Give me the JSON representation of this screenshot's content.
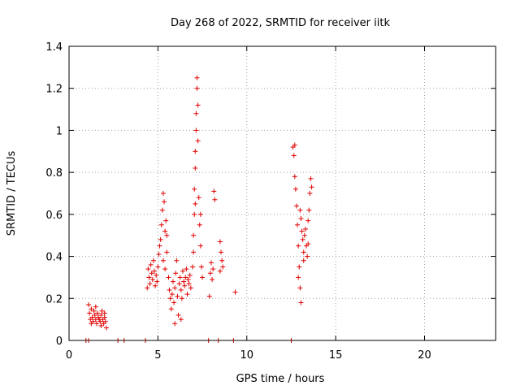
{
  "chart_data": {
    "type": "scatter",
    "title": "Day 268 of 2022, SRMTID for receiver iitk",
    "xlabel": "GPS time / hours",
    "ylabel": "SRMTID / TECUs",
    "xlim": [
      0,
      24
    ],
    "ylim": [
      0,
      1.4
    ],
    "xticks": [
      0,
      5,
      10,
      15,
      20
    ],
    "yticks": [
      0,
      0.2,
      0.4,
      0.6,
      0.8,
      1,
      1.2,
      1.4
    ],
    "xtick_labels": [
      "0",
      "5",
      "10",
      "15",
      "20"
    ],
    "ytick_labels": [
      "0",
      "0.2",
      "0.4",
      "0.6",
      "0.8",
      "1",
      "1.2",
      "1.4"
    ],
    "grid": true,
    "marker": "plus",
    "colors": {
      "points": "#e00000"
    },
    "series": [
      {
        "points": [
          [
            0.95,
            0.0
          ],
          [
            1.1,
            0.0
          ],
          [
            1.1,
            0.17
          ],
          [
            1.15,
            0.13
          ],
          [
            1.2,
            0.1
          ],
          [
            1.25,
            0.08
          ],
          [
            1.25,
            0.15
          ],
          [
            1.3,
            0.11
          ],
          [
            1.35,
            0.09
          ],
          [
            1.4,
            0.14
          ],
          [
            1.45,
            0.12
          ],
          [
            1.5,
            0.1
          ],
          [
            1.55,
            0.08
          ],
          [
            1.6,
            0.13
          ],
          [
            1.65,
            0.11
          ],
          [
            1.7,
            0.1
          ],
          [
            1.75,
            0.09
          ],
          [
            1.8,
            0.12
          ],
          [
            1.85,
            0.14
          ],
          [
            1.9,
            0.1
          ],
          [
            1.95,
            0.08
          ],
          [
            2.0,
            0.11
          ],
          [
            2.05,
            0.09
          ],
          [
            2.1,
            0.06
          ],
          [
            1.5,
            0.16
          ],
          [
            1.8,
            0.07
          ],
          [
            2.0,
            0.13
          ],
          [
            2.75,
            0.0
          ],
          [
            3.1,
            0.0
          ],
          [
            4.3,
            0.0
          ],
          [
            4.4,
            0.25
          ],
          [
            4.45,
            0.34
          ],
          [
            4.5,
            0.3
          ],
          [
            4.55,
            0.27
          ],
          [
            4.6,
            0.36
          ],
          [
            4.65,
            0.32
          ],
          [
            4.7,
            0.29
          ],
          [
            4.75,
            0.38
          ],
          [
            4.8,
            0.33
          ],
          [
            4.85,
            0.26
          ],
          [
            4.9,
            0.31
          ],
          [
            4.95,
            0.28
          ],
          [
            5.0,
            0.35
          ],
          [
            5.05,
            0.41
          ],
          [
            5.1,
            0.45
          ],
          [
            5.15,
            0.48
          ],
          [
            5.2,
            0.55
          ],
          [
            5.25,
            0.62
          ],
          [
            5.3,
            0.7
          ],
          [
            5.35,
            0.66
          ],
          [
            5.4,
            0.52
          ],
          [
            5.45,
            0.57
          ],
          [
            5.5,
            0.5
          ],
          [
            5.3,
            0.38
          ],
          [
            5.4,
            0.34
          ],
          [
            5.5,
            0.42
          ],
          [
            5.6,
            0.3
          ],
          [
            5.65,
            0.24
          ],
          [
            5.7,
            0.2
          ],
          [
            5.75,
            0.15
          ],
          [
            5.8,
            0.22
          ],
          [
            5.85,
            0.28
          ],
          [
            5.9,
            0.18
          ],
          [
            5.95,
            0.25
          ],
          [
            6.0,
            0.32
          ],
          [
            6.05,
            0.38
          ],
          [
            6.1,
            0.21
          ],
          [
            6.15,
            0.12
          ],
          [
            6.2,
            0.27
          ],
          [
            6.25,
            0.3
          ],
          [
            6.3,
            0.24
          ],
          [
            6.35,
            0.2
          ],
          [
            6.4,
            0.33
          ],
          [
            6.45,
            0.28
          ],
          [
            6.5,
            0.26
          ],
          [
            6.55,
            0.3
          ],
          [
            6.6,
            0.34
          ],
          [
            6.65,
            0.22
          ],
          [
            6.7,
            0.29
          ],
          [
            6.75,
            0.27
          ],
          [
            6.8,
            0.31
          ],
          [
            6.85,
            0.25
          ],
          [
            5.95,
            0.08
          ],
          [
            6.3,
            0.1
          ],
          [
            6.95,
            0.35
          ],
          [
            7.0,
            0.42
          ],
          [
            7.0,
            0.5
          ],
          [
            7.05,
            0.6
          ],
          [
            7.05,
            0.72
          ],
          [
            7.1,
            0.82
          ],
          [
            7.1,
            0.9
          ],
          [
            7.15,
            1.0
          ],
          [
            7.15,
            1.08
          ],
          [
            7.2,
            1.2
          ],
          [
            7.2,
            1.25
          ],
          [
            7.25,
            1.12
          ],
          [
            7.25,
            0.95
          ],
          [
            7.3,
            0.68
          ],
          [
            7.35,
            0.55
          ],
          [
            7.4,
            0.45
          ],
          [
            7.45,
            0.35
          ],
          [
            7.5,
            0.3
          ],
          [
            7.4,
            0.6
          ],
          [
            7.1,
            0.65
          ],
          [
            7.85,
            0.0
          ],
          [
            7.95,
            0.32
          ],
          [
            8.0,
            0.37
          ],
          [
            8.05,
            0.29
          ],
          [
            8.1,
            0.34
          ],
          [
            8.15,
            0.71
          ],
          [
            8.2,
            0.67
          ],
          [
            7.9,
            0.21
          ],
          [
            8.4,
            0.0
          ],
          [
            8.5,
            0.33
          ],
          [
            8.55,
            0.42
          ],
          [
            8.6,
            0.38
          ],
          [
            8.65,
            0.35
          ],
          [
            8.5,
            0.47
          ],
          [
            9.25,
            0.0
          ],
          [
            9.35,
            0.23
          ],
          [
            12.5,
            0.0
          ],
          [
            12.6,
            0.92
          ],
          [
            12.65,
            0.88
          ],
          [
            12.7,
            0.78
          ],
          [
            12.75,
            0.72
          ],
          [
            12.8,
            0.64
          ],
          [
            12.85,
            0.55
          ],
          [
            12.9,
            0.45
          ],
          [
            12.95,
            0.35
          ],
          [
            13.0,
            0.25
          ],
          [
            13.05,
            0.18
          ],
          [
            13.0,
            0.62
          ],
          [
            13.05,
            0.58
          ],
          [
            13.1,
            0.52
          ],
          [
            13.15,
            0.48
          ],
          [
            13.2,
            0.42
          ],
          [
            13.25,
            0.5
          ],
          [
            13.3,
            0.53
          ],
          [
            13.35,
            0.45
          ],
          [
            13.4,
            0.4
          ],
          [
            13.45,
            0.46
          ],
          [
            13.5,
            0.62
          ],
          [
            13.55,
            0.7
          ],
          [
            13.6,
            0.77
          ],
          [
            13.65,
            0.73
          ],
          [
            12.7,
            0.93
          ],
          [
            13.45,
            0.57
          ],
          [
            12.9,
            0.3
          ],
          [
            13.2,
            0.38
          ]
        ]
      }
    ]
  }
}
